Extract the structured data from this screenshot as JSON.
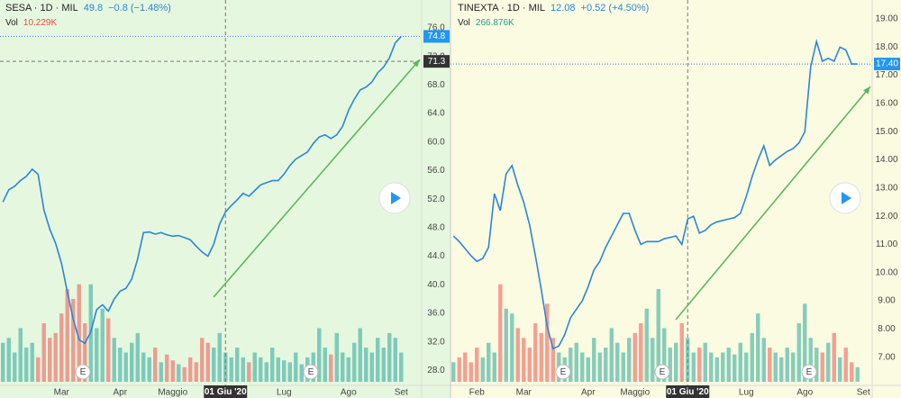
{
  "chart_data": [
    {
      "type": "line",
      "title": "SESA · 1D · MIL",
      "header_value": 49.8,
      "header_change": "−0.8 (−1.48%)",
      "volume_label": "Vol",
      "volume_last": "10.229K",
      "earnings_label": "E",
      "color": "#2b86d6",
      "background": "#e6f7df",
      "categories": [
        null,
        null,
        null,
        null,
        null,
        null,
        null,
        null,
        null,
        null,
        "Mar",
        null,
        null,
        null,
        null,
        null,
        null,
        null,
        null,
        null,
        "Apr",
        null,
        null,
        null,
        null,
        null,
        null,
        null,
        null,
        "Maggio",
        null,
        null,
        null,
        null,
        null,
        null,
        null,
        null,
        {
          "label": "01 Giu '20",
          "highlight": true
        },
        null,
        null,
        null,
        null,
        null,
        null,
        null,
        null,
        null,
        "Lug",
        null,
        null,
        null,
        null,
        null,
        null,
        null,
        null,
        null,
        null,
        "Ago",
        null,
        null,
        null,
        null,
        null,
        null,
        null,
        null,
        "Set",
        null,
        null,
        null
      ],
      "values": [
        51.6,
        53.3,
        53.8,
        54.6,
        55.2,
        56.2,
        55.5,
        50.5,
        47.8,
        45.8,
        43,
        39,
        35.2,
        32.3,
        31.8,
        33.4,
        36.5,
        37.2,
        36.3,
        38,
        39.1,
        39.5,
        40.8,
        43.6,
        47.3,
        47.4,
        47.1,
        47.3,
        47,
        46.8,
        46.9,
        46.6,
        46.3,
        45.4,
        44.6,
        44,
        45.7,
        48.5,
        50.2,
        51.1,
        51.9,
        52.8,
        52.4,
        53.2,
        54,
        54.3,
        54.6,
        54.6,
        55.5,
        56.7,
        57.6,
        58.1,
        58.6,
        59.8,
        60.7,
        61,
        60.5,
        61,
        62.2,
        64.4,
        66,
        67.3,
        67.7,
        68.4,
        69.7,
        70.5,
        71.8,
        73.9,
        74.8,
        null,
        null,
        null
      ],
      "volume": {
        "values": [
          40,
          45,
          30,
          55,
          35,
          40,
          25,
          60,
          45,
          50,
          70,
          95,
          85,
          100,
          60,
          100,
          55,
          75,
          65,
          45,
          35,
          30,
          40,
          50,
          30,
          25,
          35,
          20,
          28,
          22,
          18,
          15,
          25,
          20,
          45,
          40,
          35,
          50,
          30,
          25,
          35,
          25,
          20,
          30,
          25,
          20,
          35,
          25,
          22,
          20,
          30,
          18,
          25,
          30,
          55,
          35,
          28,
          50,
          30,
          25,
          40,
          55,
          35,
          30,
          45,
          35,
          50,
          45,
          30,
          null,
          null,
          null
        ],
        "ylim": [
          0,
          120
        ],
        "up_color": "#26a69a",
        "down_color": "#ef5350"
      },
      "ylim": [
        25.9,
        79.9
      ],
      "yticks": [
        {
          "value": 28,
          "label": "28.0"
        },
        {
          "value": 32,
          "label": "32.0"
        },
        {
          "value": 36,
          "label": "36.0"
        },
        {
          "value": 40,
          "label": "40.0"
        },
        {
          "value": 44,
          "label": "44.0"
        },
        {
          "value": 48,
          "label": "48.0"
        },
        {
          "value": 52,
          "label": "52.0"
        },
        {
          "value": 56,
          "label": "56.0"
        },
        {
          "value": 60,
          "label": "60.0"
        },
        {
          "value": 64,
          "label": "64.0"
        },
        {
          "value": 68,
          "label": "68.0"
        },
        {
          "value": 72,
          "label": "72.0"
        },
        {
          "value": 76,
          "label": "76.0"
        }
      ],
      "last_price": 74.8,
      "crosshair_price": 71.3
    },
    {
      "type": "line",
      "title": "TINEXTA · 1D · MIL",
      "header_value": 12.08,
      "header_change": "+0.52 (+4.50%)",
      "volume_label": "Vol",
      "volume_last": "266.876K",
      "earnings_label": "E",
      "color": "#2b86d6",
      "background": "#fbfbe2",
      "categories": [
        null,
        null,
        null,
        null,
        "Feb",
        null,
        null,
        null,
        null,
        null,
        null,
        null,
        "Mar",
        null,
        null,
        null,
        null,
        null,
        null,
        null,
        null,
        null,
        null,
        "Apr",
        null,
        null,
        null,
        null,
        null,
        null,
        null,
        "Maggio",
        null,
        null,
        null,
        null,
        null,
        null,
        null,
        null,
        {
          "label": "01 Giu '20",
          "highlight": true
        },
        null,
        null,
        null,
        null,
        null,
        null,
        null,
        null,
        null,
        "Lug",
        null,
        null,
        null,
        null,
        null,
        null,
        null,
        null,
        null,
        "Ago",
        null,
        null,
        null,
        null,
        null,
        null,
        null,
        null,
        null,
        "Set",
        null
      ],
      "values": [
        11.3,
        11.1,
        10.85,
        10.6,
        10.4,
        10.5,
        10.9,
        12.8,
        12.2,
        13.5,
        13.8,
        13.1,
        12.5,
        11.7,
        10.6,
        9.4,
        8.1,
        7.3,
        7.4,
        7.8,
        8.4,
        8.7,
        9.0,
        9.5,
        10.1,
        10.4,
        10.9,
        11.3,
        11.7,
        12.1,
        12.1,
        11.5,
        11.0,
        11.1,
        11.1,
        11.1,
        11.2,
        11.25,
        11.3,
        11.0,
        11.9,
        12.0,
        11.4,
        11.5,
        11.7,
        11.8,
        11.85,
        11.9,
        11.95,
        12.1,
        12.7,
        13.4,
        14.0,
        14.5,
        13.8,
        14.0,
        14.15,
        14.3,
        14.4,
        14.6,
        15.0,
        17.3,
        18.2,
        17.5,
        17.6,
        17.5,
        18.0,
        17.9,
        17.4,
        17.4,
        null,
        null
      ],
      "volume": {
        "values": [
          20,
          25,
          30,
          20,
          35,
          25,
          40,
          30,
          100,
          75,
          70,
          55,
          45,
          35,
          60,
          50,
          80,
          45,
          30,
          25,
          35,
          40,
          30,
          25,
          45,
          30,
          35,
          55,
          40,
          30,
          45,
          50,
          60,
          75,
          45,
          95,
          55,
          35,
          40,
          60,
          45,
          30,
          35,
          40,
          30,
          25,
          30,
          35,
          28,
          40,
          30,
          50,
          70,
          45,
          35,
          30,
          25,
          35,
          30,
          60,
          80,
          45,
          35,
          30,
          40,
          50,
          25,
          35,
          20,
          15,
          null,
          null
        ],
        "ylim": [
          0,
          120
        ],
        "up_color": "#26a69a",
        "down_color": "#ef5350"
      },
      "ylim": [
        6.0,
        19.67
      ],
      "yticks": [
        {
          "value": 7,
          "label": "7.00"
        },
        {
          "value": 8,
          "label": "8.00"
        },
        {
          "value": 9,
          "label": "9.00"
        },
        {
          "value": 10,
          "label": "10.00"
        },
        {
          "value": 11,
          "label": "11.00"
        },
        {
          "value": 12,
          "label": "12.00"
        },
        {
          "value": 13,
          "label": "13.00"
        },
        {
          "value": 14,
          "label": "14.00"
        },
        {
          "value": 15,
          "label": "15.00"
        },
        {
          "value": 16,
          "label": "16.00"
        },
        {
          "value": 17,
          "label": "17.00"
        },
        {
          "value": 18,
          "label": "18.00"
        },
        {
          "value": 19,
          "label": "19.00"
        }
      ],
      "last_price": {
        "value": 17.4,
        "label": "17.40"
      }
    }
  ]
}
